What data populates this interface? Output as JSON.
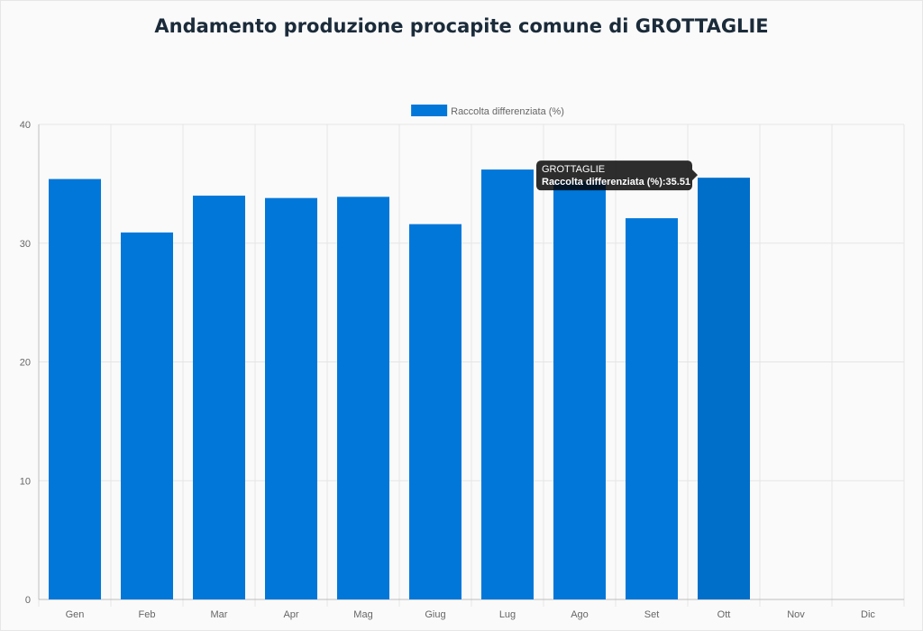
{
  "page": {
    "title": "Andamento produzione procapite comune di GROTTAGLIE"
  },
  "chart_data": {
    "type": "bar",
    "categories": [
      "Gen",
      "Feb",
      "Mar",
      "Apr",
      "Mag",
      "Giug",
      "Lug",
      "Ago",
      "Set",
      "Ott",
      "Nov",
      "Dic"
    ],
    "series": [
      {
        "name": "Raccolta differenziata (%)",
        "color": "#0077d9",
        "values": [
          35.4,
          30.9,
          34.0,
          33.8,
          33.9,
          31.6,
          36.2,
          35.2,
          32.1,
          35.51,
          null,
          null
        ]
      }
    ],
    "ylim": [
      0,
      40
    ],
    "yticks": [
      0,
      10,
      20,
      30,
      40
    ],
    "grid": true,
    "legend": "top-center",
    "highlight_index": 9,
    "highlight_color": "#006fc9",
    "tooltip": {
      "title": "GROTTAGLIE",
      "body": "Raccolta differenziata (%):35.51"
    }
  }
}
